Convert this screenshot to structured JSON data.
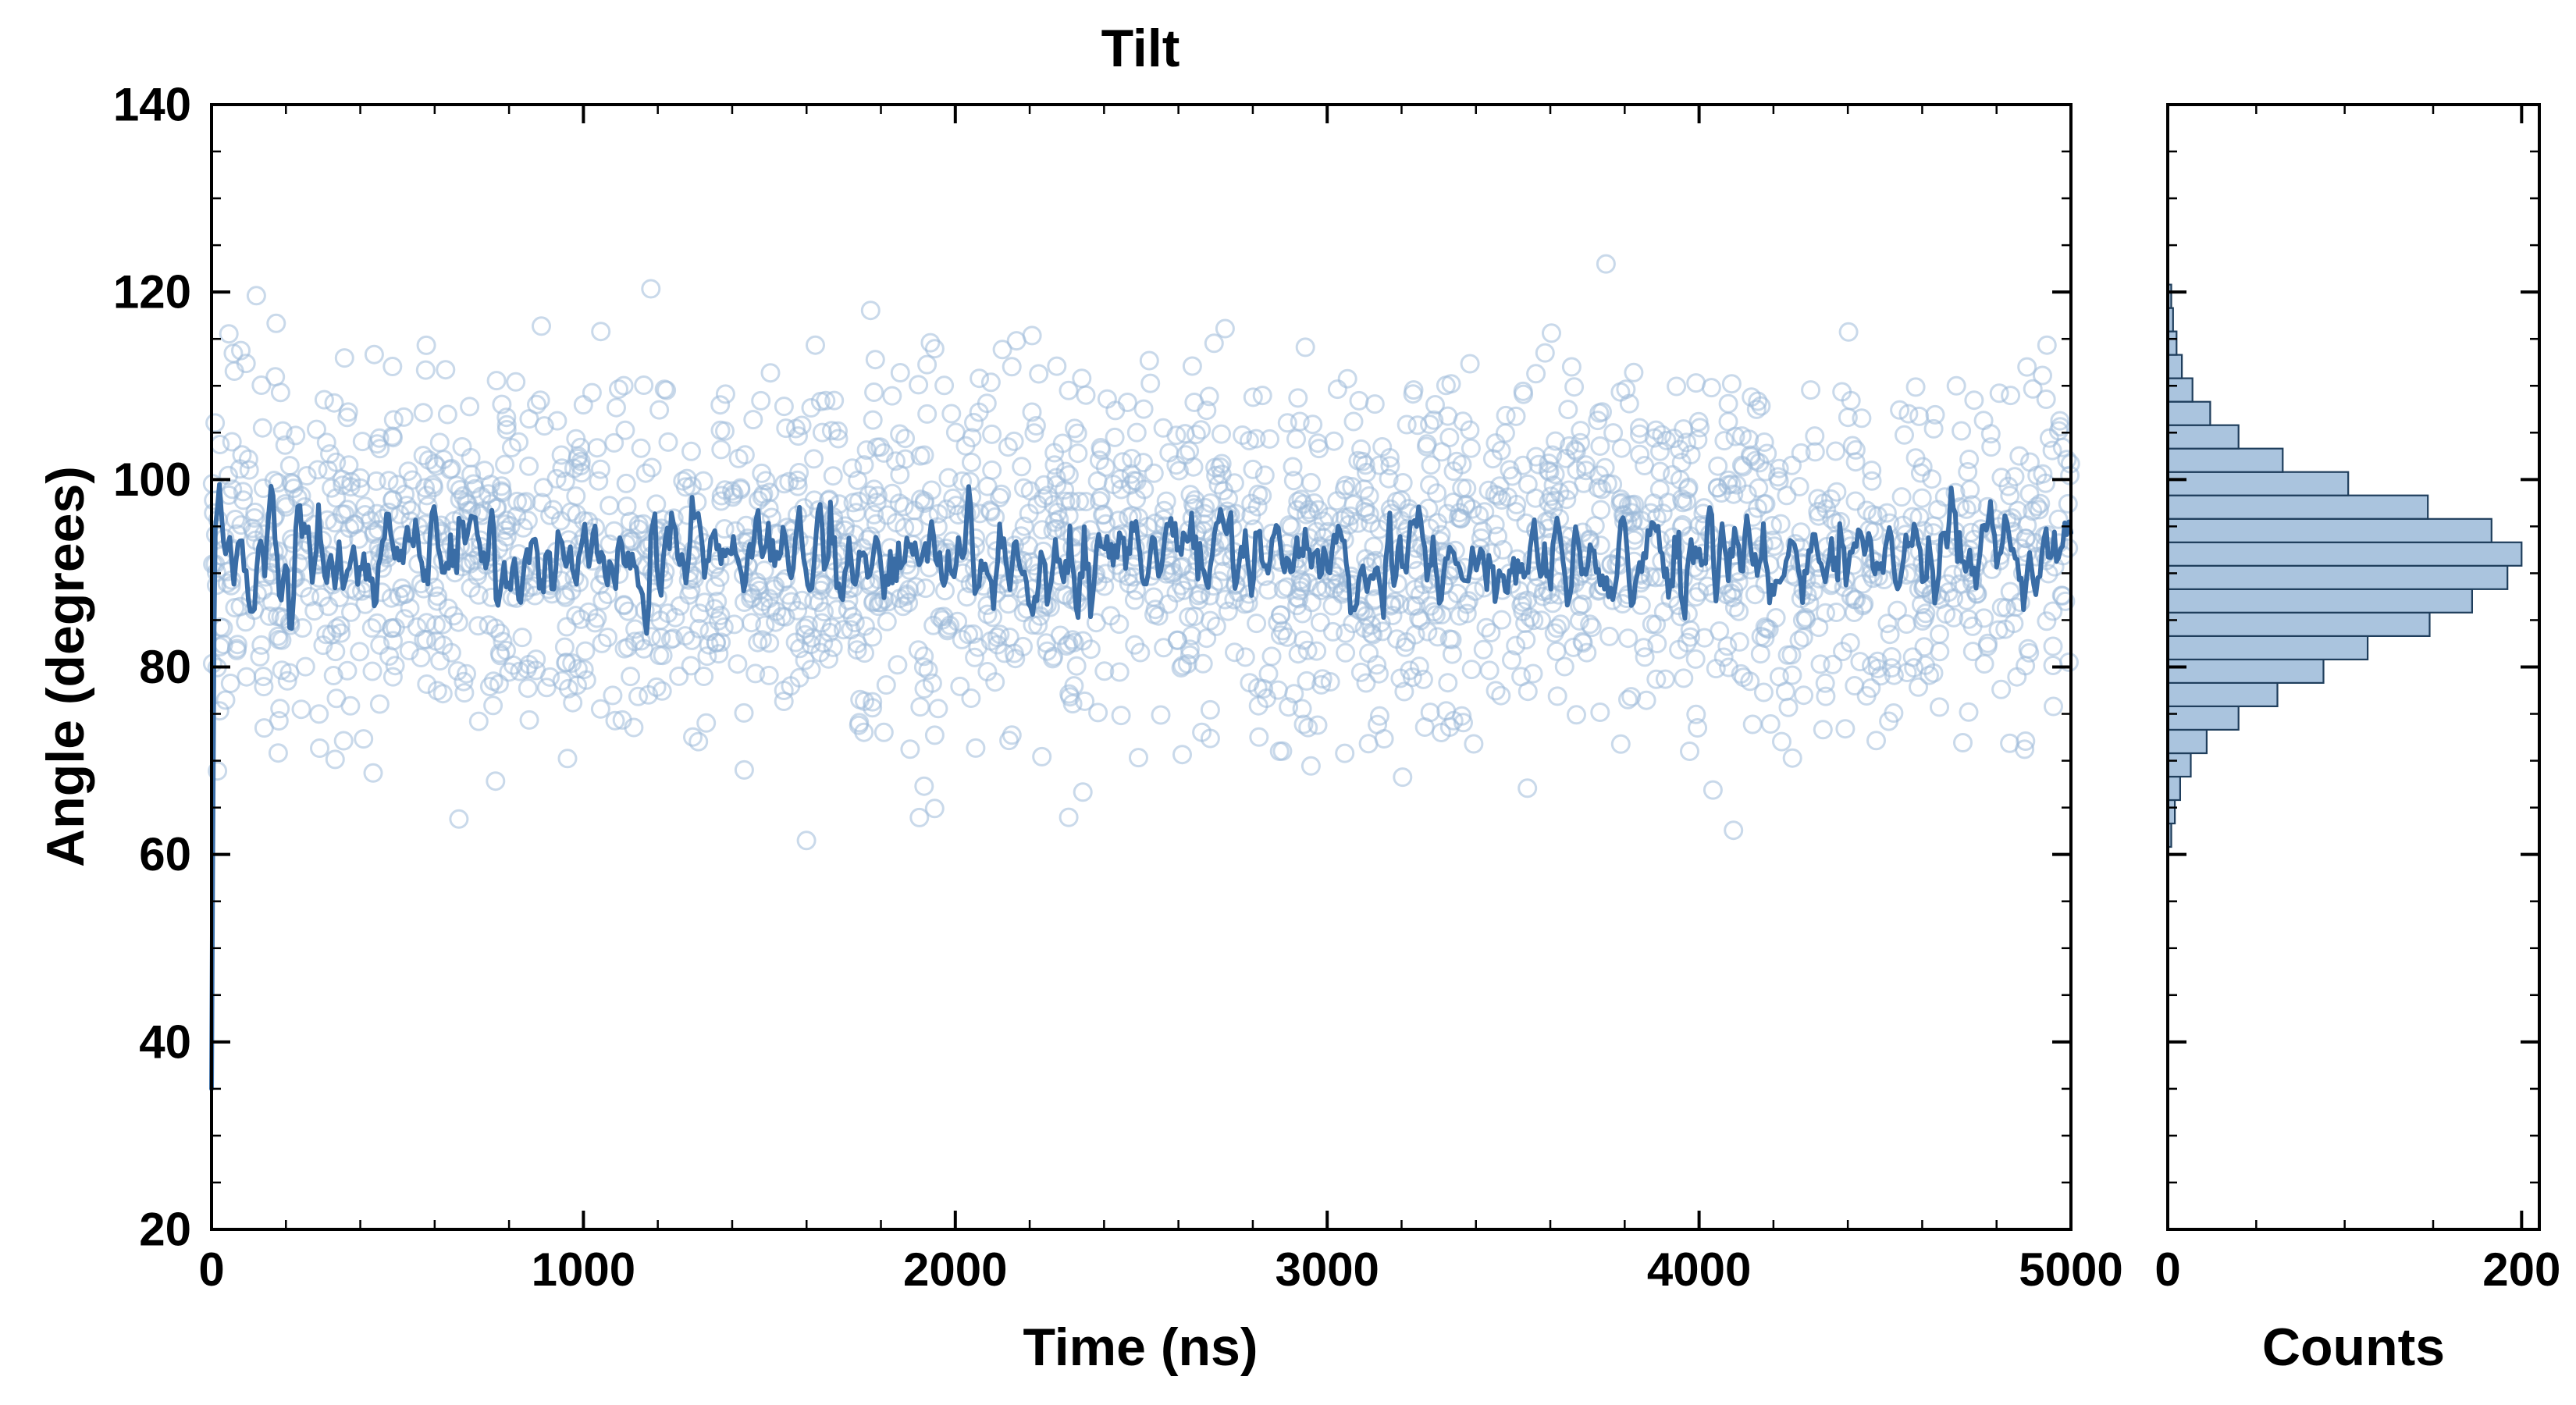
{
  "chart_data": [
    {
      "type": "scatter",
      "name": "tilt-vs-time",
      "title": "Tilt",
      "xlabel": "Time (ns)",
      "ylabel": "Angle (degrees)",
      "xlim": [
        0,
        5000
      ],
      "ylim": [
        20,
        140
      ],
      "x_ticks": [
        0,
        1000,
        2000,
        3000,
        4000,
        5000
      ],
      "y_ticks": [
        20,
        40,
        60,
        80,
        100,
        120,
        140
      ],
      "x_minor_step": 200,
      "y_minor_step": 5,
      "grid": false,
      "legend": "none",
      "series": [
        {
          "name": "raw-tilt-samples",
          "style": "open-circle",
          "color": "#9db9d8",
          "marker_radius": 11,
          "marker_opacity": 0.55,
          "n_points": 2400,
          "x_range": [
            0,
            5000
          ],
          "y_mean": 92.0,
          "y_sd": 9.2,
          "y_clamp": [
            60,
            123
          ],
          "seed": 7
        },
        {
          "name": "running-mean",
          "style": "line",
          "color": "#3a6da6",
          "line_width": 6,
          "n_points": 900,
          "x_range": [
            10,
            5000
          ],
          "y_mean": 91.3,
          "y_sd": 2.7,
          "y_clamp": [
            80.5,
            100.5
          ],
          "seed": 13,
          "initial_points": [
            [
              0,
              35
            ],
            [
              3,
              58
            ],
            [
              7,
              84
            ]
          ]
        }
      ]
    },
    {
      "type": "bar",
      "name": "angle-histogram",
      "orientation": "horizontal",
      "xlabel": "Counts",
      "xlim": [
        0,
        210
      ],
      "ylim": [
        20,
        140
      ],
      "x_ticks": [
        0,
        200
      ],
      "x_minor_step": 50,
      "y_minor_step": 5,
      "bar_color": "#aac4de",
      "bar_edge_color": "#1f3e5c",
      "bin_start": 60.8,
      "bin_width": 2.5,
      "counts": [
        2,
        4,
        7,
        13,
        22,
        40,
        62,
        88,
        113,
        148,
        172,
        192,
        200,
        183,
        147,
        102,
        65,
        40,
        24,
        14,
        8,
        5,
        3,
        2
      ]
    }
  ],
  "style": {
    "spine_color": "#000000",
    "tick_color": "#000000",
    "tick_label_size": 60,
    "background": "#ffffff"
  }
}
